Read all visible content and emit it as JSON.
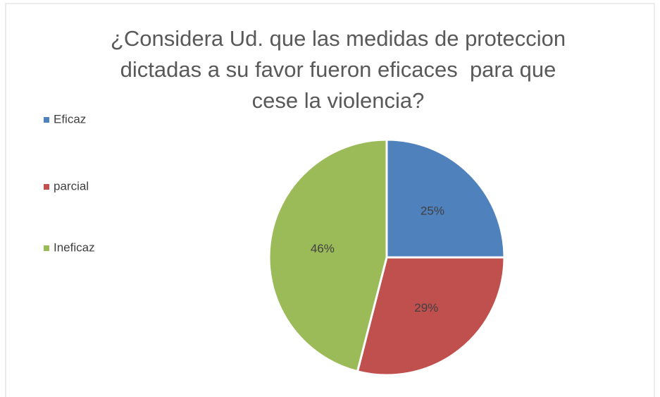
{
  "chart_data": {
    "type": "pie",
    "title": "¿Considera Ud. que las medidas de proteccion\ndictadas a su favor fueron eficaces  para que\ncese la violencia?",
    "categories": [
      "Eficaz",
      "parcial",
      "Ineficaz"
    ],
    "values": [
      25,
      29,
      46
    ],
    "value_labels": [
      "25%",
      "29%",
      "46%"
    ],
    "colors": [
      "#4f81bd",
      "#c0504d",
      "#9bbb59"
    ],
    "legend": "left"
  }
}
